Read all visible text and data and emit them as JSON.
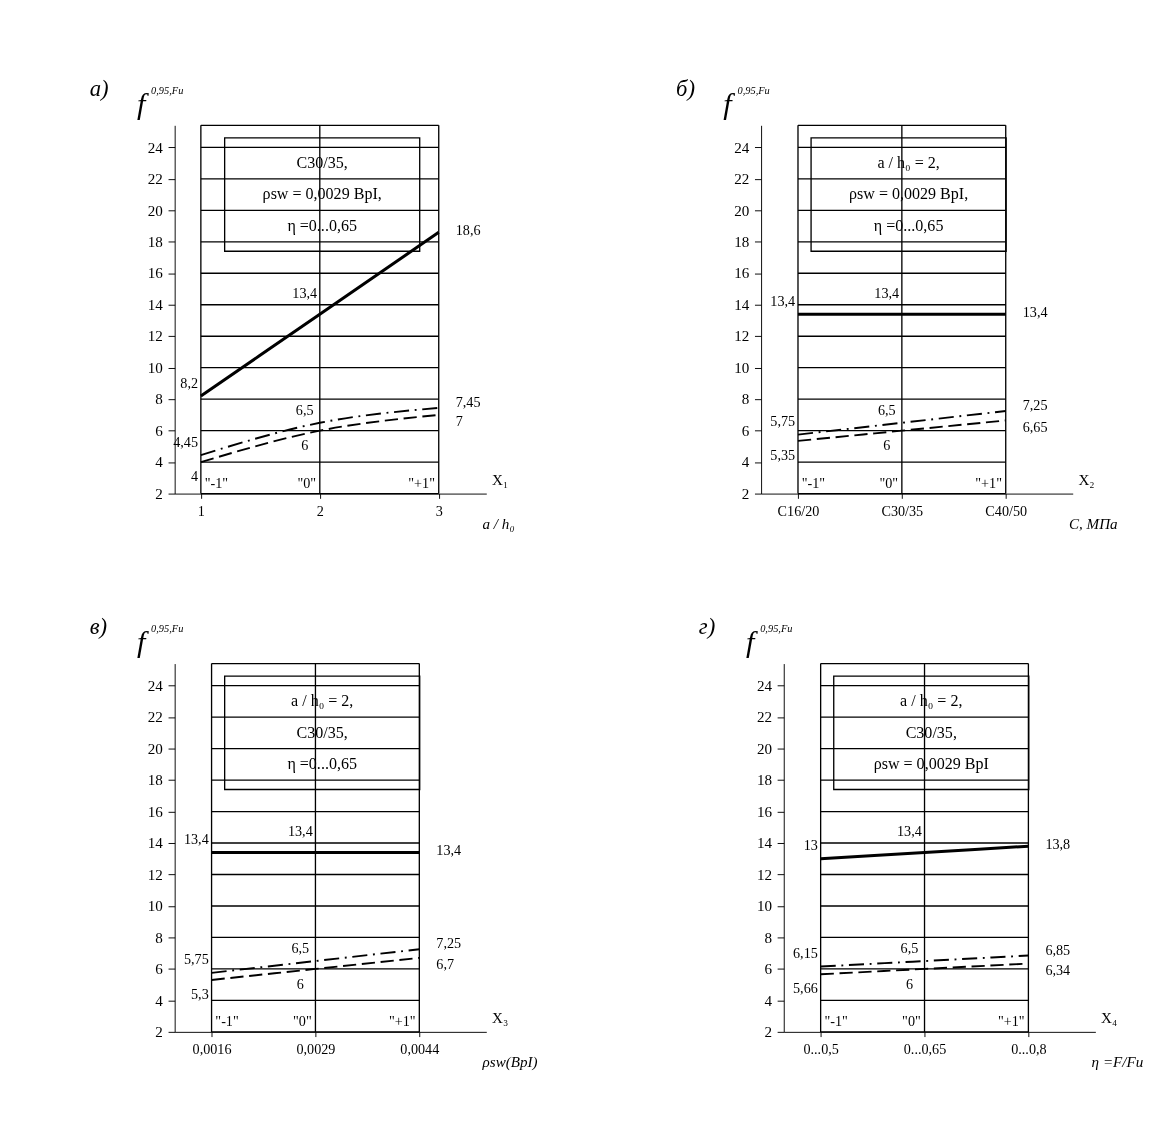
{
  "chart_data": [
    {
      "type": "line",
      "title": "а)",
      "ylabel": "f$^{0,95,Fu}$",
      "xlabel": "a / h₀",
      "x": [
        1,
        2,
        3
      ],
      "xlim": [
        0.78,
        3.4
      ],
      "xticks": [
        1,
        2,
        3
      ],
      "ylim": [
        2,
        25.4
      ],
      "yticks": [
        2,
        4,
        6,
        8,
        10,
        12,
        14,
        16,
        18,
        20,
        22,
        24
      ],
      "grid": true,
      "annotations": [
        "C30/35,\nρsw = 0,0029 ВрI,\nη =0...0,65",
        "X₁",
        "\"-1\"",
        "\"0\"",
        "\"+1\""
      ],
      "series": [
        {
          "color": "#000000",
          "line_style": "solid",
          "values": [
            8.2,
            13.4,
            18.6
          ],
          "value_labels": [
            "8,2",
            "13,4",
            "18,6"
          ]
        },
        {
          "color": "#000000",
          "line_style": "dashdot",
          "values": [
            4.45,
            6.5,
            7.45
          ],
          "value_labels": [
            "4,45",
            "6,5",
            "7,45"
          ]
        },
        {
          "color": "#000000",
          "line_style": "dashed",
          "values": [
            4,
            6,
            7
          ],
          "value_labels": [
            "4",
            "6",
            "7"
          ]
        }
      ]
    },
    {
      "type": "line",
      "title": "б)",
      "ylabel": "f$^{0,95,Fu}$",
      "xlabel": "С, МПа",
      "categories": [
        "C16/20",
        "C30/35",
        "C40/50"
      ],
      "ylim": [
        2,
        25.4
      ],
      "yticks": [
        2,
        4,
        6,
        8,
        10,
        12,
        14,
        16,
        18,
        20,
        22,
        24
      ],
      "grid": true,
      "annotations": [
        "a / h₀ = 2,\nρsw = 0,0029 ВрI,\nη =0...0,65",
        "X₂",
        "\"-1\"",
        "\"0\"",
        "\"+1\""
      ],
      "series": [
        {
          "color": "#000000",
          "line_style": "solid",
          "values": [
            13.4,
            13.4,
            13.4
          ],
          "value_labels": [
            "13,4",
            "13,4",
            "13,4"
          ]
        },
        {
          "color": "#000000",
          "line_style": "dashdot",
          "values": [
            5.75,
            6.5,
            7.25
          ],
          "value_labels": [
            "5,75",
            "6,5",
            "7,25"
          ]
        },
        {
          "color": "#000000",
          "line_style": "dashed",
          "values": [
            5.35,
            6,
            6.65
          ],
          "value_labels": [
            "5,35",
            "6",
            "6,65"
          ]
        }
      ]
    },
    {
      "type": "line",
      "title": "в)",
      "ylabel": "f$^{0,95,Fu}$",
      "xlabel": "ρsw(ВрI)",
      "categories": [
        "0,0016",
        "0,0029",
        "0,0044"
      ],
      "ylim": [
        2,
        25.4
      ],
      "yticks": [
        2,
        4,
        6,
        8,
        10,
        12,
        14,
        16,
        18,
        20,
        22,
        24
      ],
      "grid": true,
      "annotations": [
        "a / h₀ = 2,\nC30/35,\nη =0...0,65",
        "X₃",
        "\"-1\"",
        "\"0\"",
        "\"+1\""
      ],
      "series": [
        {
          "color": "#000000",
          "line_style": "solid",
          "values": [
            13.4,
            13.4,
            13.4
          ],
          "value_labels": [
            "13,4",
            "13,4",
            "13,4"
          ]
        },
        {
          "color": "#000000",
          "line_style": "dashdot",
          "values": [
            5.75,
            6.5,
            7.25
          ],
          "value_labels": [
            "5,75",
            "6,5",
            "7,25"
          ]
        },
        {
          "color": "#000000",
          "line_style": "dashed",
          "values": [
            5.3,
            6,
            6.7
          ],
          "value_labels": [
            "5,3",
            "6",
            "6,7"
          ]
        }
      ]
    },
    {
      "type": "line",
      "title": "г)",
      "ylabel": "f$^{0,95,Fu}$",
      "xlabel": "η =F/Fu",
      "categories": [
        "0...0,5",
        "0...0,65",
        "0...0,8"
      ],
      "ylim": [
        2,
        25.4
      ],
      "yticks": [
        2,
        4,
        6,
        8,
        10,
        12,
        14,
        16,
        18,
        20,
        22,
        24
      ],
      "grid": true,
      "annotations": [
        "a / h₀ = 2,\nC30/35,\nρsw = 0,0029 ВрI",
        "X₄",
        "\"-1\"",
        "\"0\"",
        "\"+1\""
      ],
      "series": [
        {
          "color": "#000000",
          "line_style": "solid",
          "values": [
            13,
            13.4,
            13.8
          ],
          "value_labels": [
            "13",
            "13,4",
            "13,8"
          ]
        },
        {
          "color": "#000000",
          "line_style": "dashdot",
          "values": [
            6.15,
            6.5,
            6.85
          ],
          "value_labels": [
            "6,15",
            "6,5",
            "6,85"
          ]
        },
        {
          "color": "#000000",
          "line_style": "dashed",
          "values": [
            5.66,
            6,
            6.34
          ],
          "value_labels": [
            "5,66",
            "6",
            "6,34"
          ]
        }
      ]
    }
  ]
}
